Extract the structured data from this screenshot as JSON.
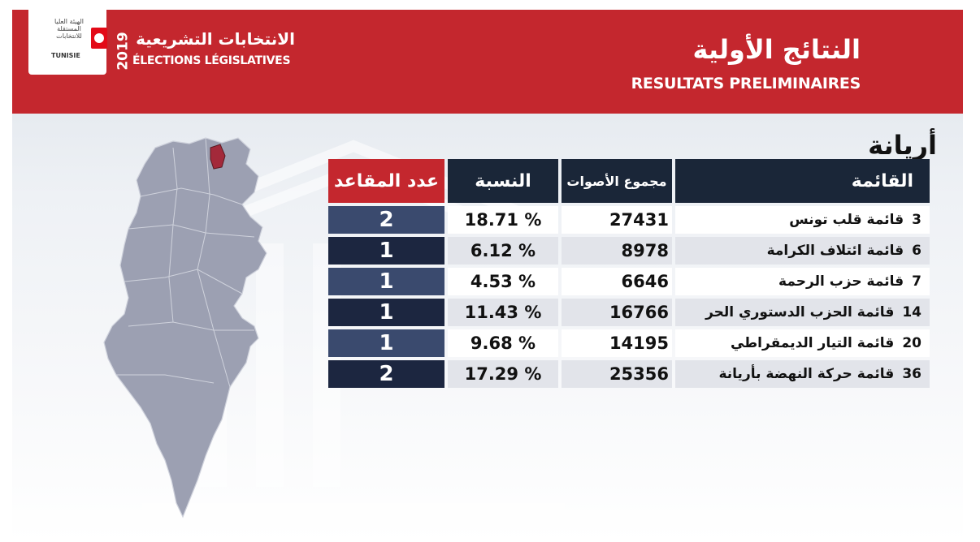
{
  "header": {
    "logo_text_ar": "الهيئة العليا المستقلة للانتخابات",
    "logo_name": "TUNISIE",
    "year": "2019",
    "elections_ar": "الانتخابات التشريعية",
    "elections_fr": "ÉLECTIONS LÉGISLATIVES",
    "title_ar": "النتائج الأولية",
    "title_fr": "RESULTATS PRELIMINAIRES"
  },
  "colors": {
    "brand_red": "#c4272e",
    "header_navy": "#1a2638",
    "seat_blue": "#3a4a6e",
    "seat_dark": "#1c2640",
    "map_fill": "#9ca0b2",
    "highlight_region": "#a3293a"
  },
  "governorate": "أريانة",
  "table": {
    "headers": {
      "list": "القائمة",
      "votes": "مجموع الأصوات",
      "percent": "النسبة",
      "seats": "عدد المقاعد"
    },
    "rows": [
      {
        "num": "3",
        "name": "قائمة قلب تونس",
        "votes": "27431",
        "percent": "18.71 %",
        "seats": "2"
      },
      {
        "num": "6",
        "name": "قائمة ائتلاف الكرامة",
        "votes": "8978",
        "percent": "6.12 %",
        "seats": "1"
      },
      {
        "num": "7",
        "name": "قائمة حزب الرحمة",
        "votes": "6646",
        "percent": "4.53 %",
        "seats": "1"
      },
      {
        "num": "14",
        "name": "قائمة الحزب الدستوري الحر",
        "votes": "16766",
        "percent": "11.43 %",
        "seats": "1"
      },
      {
        "num": "20",
        "name": "قائمة التيار الديمقراطي",
        "votes": "14195",
        "percent": "9.68 %",
        "seats": "1"
      },
      {
        "num": "36",
        "name": "قائمة حركة النهضة بأريانة",
        "votes": "25356",
        "percent": "17.29 %",
        "seats": "2"
      }
    ]
  }
}
